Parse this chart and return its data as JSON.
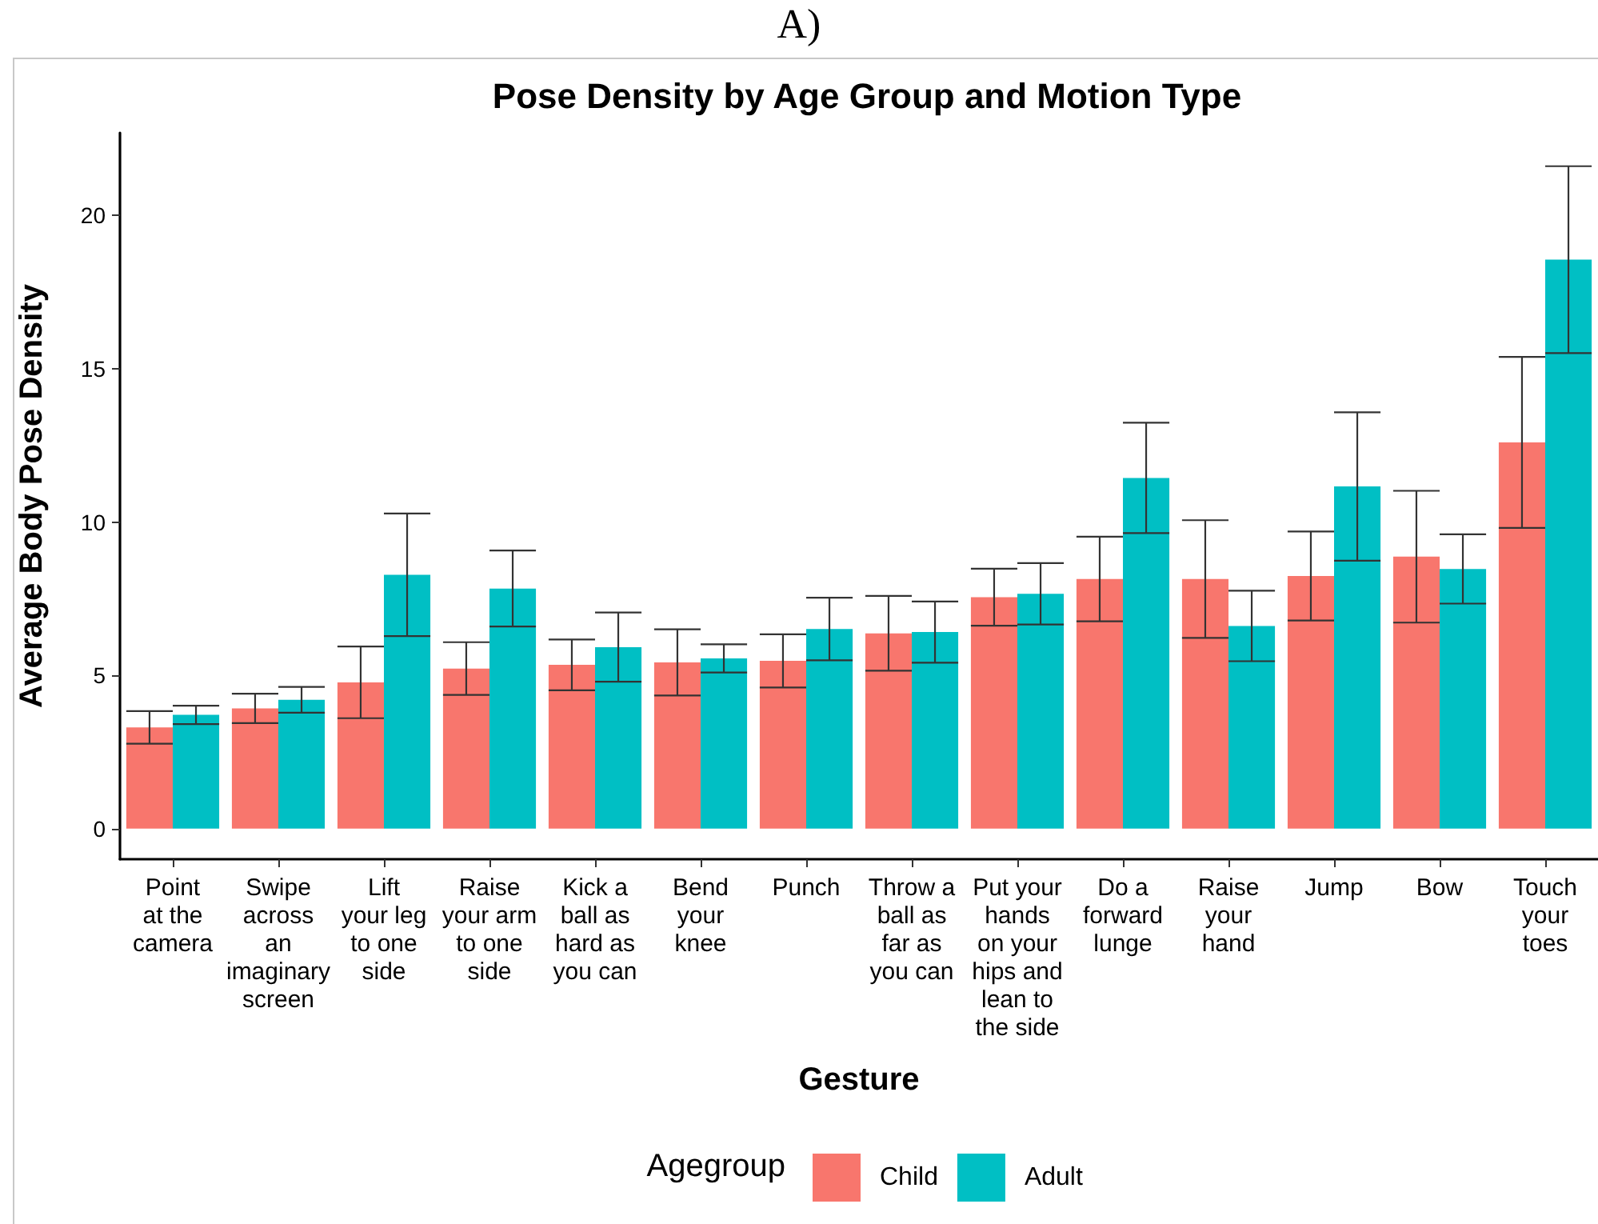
{
  "chart_data": {
    "type": "bar",
    "title": "Pose Density by Age Group and Motion Type",
    "xlabel": "Gesture",
    "ylabel": "Average Body Pose Density",
    "legend_title": "Agegroup",
    "annotations": [
      "A)"
    ],
    "categories": [
      "Point\nat the\ncamera",
      "Swipe\nacross\nan\nimaginary\nscreen",
      "Lift\nyour leg\nto one\nside",
      "Raise\nyour arm\nto one\nside",
      "Kick a\nball as\nhard as\nyou can",
      "Bend\nyour\nknee",
      "Punch",
      "Throw a\nball as\nfar as\nyou can",
      "Put your\nhands\non your\nhips and\nlean to\nthe side",
      "Do a\nforward\nlunge",
      "Raise\nyour\nhand",
      "Jump",
      "Bow",
      "Touch\nyour\ntoes"
    ],
    "series": [
      {
        "name": "Child",
        "color": "#f8766d",
        "values": [
          3.3,
          3.92,
          4.77,
          5.22,
          5.34,
          5.42,
          5.47,
          6.37,
          7.55,
          8.14,
          8.14,
          8.24,
          8.87,
          12.6
        ],
        "errors": [
          0.53,
          0.48,
          1.17,
          0.86,
          0.83,
          1.08,
          0.87,
          1.22,
          0.93,
          1.38,
          1.92,
          1.45,
          2.15,
          2.79
        ]
      },
      {
        "name": "Adult",
        "color": "#00bfc4",
        "values": [
          3.71,
          4.2,
          8.28,
          7.83,
          5.92,
          5.55,
          6.51,
          6.41,
          7.66,
          11.44,
          6.61,
          11.16,
          8.47,
          18.56
        ],
        "errors": [
          0.3,
          0.42,
          2.0,
          1.24,
          1.13,
          0.46,
          1.02,
          1.0,
          1.0,
          1.8,
          1.15,
          2.42,
          1.13,
          3.05
        ]
      }
    ],
    "ylim": [
      -1,
      22.7
    ],
    "yticks": [
      0,
      5,
      10,
      15,
      20
    ],
    "grid": false,
    "legend": "bottom"
  }
}
